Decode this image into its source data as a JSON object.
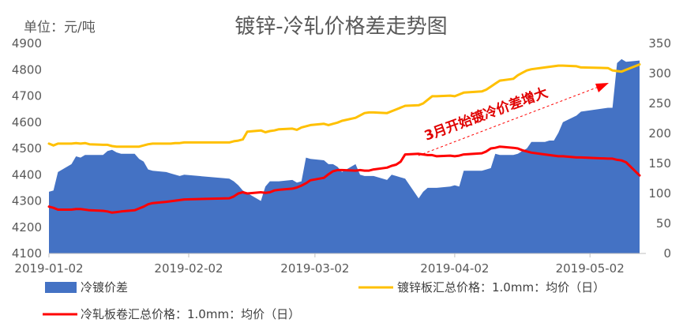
{
  "chart_data": {
    "type": "area",
    "title": "镀锌-冷轧价格差走势图",
    "unit_label": "单位：元/吨",
    "x_tick_labels": [
      "2019-01-02",
      "2019-02-02",
      "2019-03-02",
      "2019-04-02",
      "2019-05-02"
    ],
    "y_left": {
      "min": 4100,
      "max": 4900,
      "ticks": [
        "4100",
        "4200",
        "4300",
        "4400",
        "4500",
        "4600",
        "4700",
        "4800",
        "4900"
      ]
    },
    "y_right": {
      "min": 0,
      "max": 350,
      "ticks": [
        "0",
        "50",
        "100",
        "150",
        "200",
        "250",
        "300",
        "350"
      ]
    },
    "grid": false,
    "legend_placement": "bottom",
    "annotation": "3月开始镀冷价差增大",
    "series": [
      {
        "name": "冷镀价差",
        "kind": "area",
        "axis": "left",
        "color": "#4472c4",
        "x": [
          "2019-01-02",
          "2019-01-03",
          "2019-01-04",
          "2019-01-07",
          "2019-01-08",
          "2019-01-09",
          "2019-01-10",
          "2019-01-11",
          "2019-01-14",
          "2019-01-15",
          "2019-01-16",
          "2019-01-17",
          "2019-01-18",
          "2019-01-21",
          "2019-01-22",
          "2019-01-23",
          "2019-01-24",
          "2019-01-25",
          "2019-01-28",
          "2019-01-29",
          "2019-01-30",
          "2019-01-31",
          "2019-02-01",
          "2019-02-11",
          "2019-02-12",
          "2019-02-13",
          "2019-02-14",
          "2019-02-15",
          "2019-02-18",
          "2019-02-19",
          "2019-02-20",
          "2019-02-21",
          "2019-02-22",
          "2019-02-25",
          "2019-02-26",
          "2019-02-27",
          "2019-02-28",
          "2019-03-01",
          "2019-03-04",
          "2019-03-05",
          "2019-03-06",
          "2019-03-07",
          "2019-03-08",
          "2019-03-11",
          "2019-03-12",
          "2019-03-13",
          "2019-03-14",
          "2019-03-15",
          "2019-03-18",
          "2019-03-19",
          "2019-03-20",
          "2019-03-21",
          "2019-03-22",
          "2019-03-25",
          "2019-03-26",
          "2019-03-27",
          "2019-03-28",
          "2019-03-29",
          "2019-04-01",
          "2019-04-02",
          "2019-04-03",
          "2019-04-04",
          "2019-04-08",
          "2019-04-09",
          "2019-04-10",
          "2019-04-11",
          "2019-04-12",
          "2019-04-15",
          "2019-04-16",
          "2019-04-17",
          "2019-04-18",
          "2019-04-19",
          "2019-04-22",
          "2019-04-23",
          "2019-04-24",
          "2019-04-25",
          "2019-04-26",
          "2019-04-29",
          "2019-04-30",
          "2019-05-06",
          "2019-05-07",
          "2019-05-08",
          "2019-05-09",
          "2019-05-10",
          "2019-05-13"
        ],
        "y": [
          4335,
          4340,
          4410,
          4440,
          4470,
          4465,
          4475,
          4475,
          4475,
          4490,
          4495,
          4485,
          4480,
          4480,
          4460,
          4450,
          4420,
          4415,
          4410,
          4405,
          4400,
          4395,
          4400,
          4385,
          4375,
          4360,
          4340,
          4330,
          4300,
          4355,
          4375,
          4375,
          4375,
          4380,
          4370,
          4375,
          4465,
          4460,
          4455,
          4440,
          4440,
          4430,
          4410,
          4440,
          4400,
          4395,
          4395,
          4395,
          4380,
          4400,
          4395,
          4390,
          4385,
          4310,
          4335,
          4350,
          4350,
          4350,
          4355,
          4360,
          4355,
          4415,
          4415,
          4420,
          4425,
          4480,
          4475,
          4475,
          4480,
          4490,
          4500,
          4525,
          4525,
          4530,
          4530,
          4560,
          4600,
          4625,
          4640,
          4655,
          4655,
          4825,
          4840,
          4830,
          4835
        ]
      },
      {
        "name": "镀锌板汇总价格：1.0mm：均价（日）",
        "kind": "line",
        "axis": "right",
        "color": "#ffc000",
        "x": [
          "2019-01-02",
          "2019-01-03",
          "2019-01-04",
          "2019-01-07",
          "2019-01-08",
          "2019-01-09",
          "2019-01-10",
          "2019-01-11",
          "2019-01-14",
          "2019-01-15",
          "2019-01-16",
          "2019-01-17",
          "2019-01-18",
          "2019-01-21",
          "2019-01-22",
          "2019-01-23",
          "2019-01-24",
          "2019-01-25",
          "2019-01-28",
          "2019-01-29",
          "2019-01-30",
          "2019-01-31",
          "2019-02-01",
          "2019-02-11",
          "2019-02-12",
          "2019-02-13",
          "2019-02-14",
          "2019-02-15",
          "2019-02-18",
          "2019-02-19",
          "2019-02-20",
          "2019-02-21",
          "2019-02-22",
          "2019-02-25",
          "2019-02-26",
          "2019-02-27",
          "2019-02-28",
          "2019-03-01",
          "2019-03-04",
          "2019-03-05",
          "2019-03-06",
          "2019-03-07",
          "2019-03-08",
          "2019-03-11",
          "2019-03-12",
          "2019-03-13",
          "2019-03-14",
          "2019-03-15",
          "2019-03-18",
          "2019-03-19",
          "2019-03-20",
          "2019-03-21",
          "2019-03-22",
          "2019-03-25",
          "2019-03-26",
          "2019-03-27",
          "2019-03-28",
          "2019-03-29",
          "2019-04-01",
          "2019-04-02",
          "2019-04-03",
          "2019-04-04",
          "2019-04-08",
          "2019-04-09",
          "2019-04-10",
          "2019-04-11",
          "2019-04-12",
          "2019-04-15",
          "2019-04-16",
          "2019-04-17",
          "2019-04-18",
          "2019-04-19",
          "2019-04-22",
          "2019-04-23",
          "2019-04-24",
          "2019-04-25",
          "2019-04-26",
          "2019-04-29",
          "2019-04-30",
          "2019-05-06",
          "2019-05-07",
          "2019-05-08",
          "2019-05-09",
          "2019-05-10",
          "2019-05-13"
        ],
        "y": [
          183,
          180,
          183,
          183,
          184,
          183,
          184,
          182,
          181,
          181,
          179,
          178,
          178,
          178,
          178,
          180,
          182,
          183,
          183,
          183,
          184,
          184,
          185,
          185,
          187,
          188,
          190,
          203,
          205,
          202,
          204,
          205,
          207,
          208,
          206,
          210,
          212,
          214,
          216,
          214,
          216,
          218,
          221,
          226,
          230,
          234,
          235,
          235,
          234,
          237,
          240,
          243,
          246,
          247,
          250,
          256,
          262,
          262,
          263,
          262,
          265,
          268,
          270,
          273,
          278,
          283,
          288,
          291,
          297,
          301,
          305,
          307,
          310,
          311,
          312,
          313,
          313,
          312,
          310,
          309,
          305,
          304,
          303,
          306,
          315
        ]
      },
      {
        "name": "冷轧板卷汇总价格：1.0mm：均价（日）",
        "kind": "line",
        "axis": "right",
        "color": "#ff0000",
        "x": [
          "2019-01-02",
          "2019-01-03",
          "2019-01-04",
          "2019-01-07",
          "2019-01-08",
          "2019-01-09",
          "2019-01-10",
          "2019-01-11",
          "2019-01-14",
          "2019-01-15",
          "2019-01-16",
          "2019-01-17",
          "2019-01-18",
          "2019-01-21",
          "2019-01-22",
          "2019-01-23",
          "2019-01-24",
          "2019-01-25",
          "2019-01-28",
          "2019-01-29",
          "2019-01-30",
          "2019-01-31",
          "2019-02-01",
          "2019-02-11",
          "2019-02-12",
          "2019-02-13",
          "2019-02-14",
          "2019-02-15",
          "2019-02-18",
          "2019-02-19",
          "2019-02-20",
          "2019-02-21",
          "2019-02-22",
          "2019-02-25",
          "2019-02-26",
          "2019-02-27",
          "2019-02-28",
          "2019-03-01",
          "2019-03-04",
          "2019-03-05",
          "2019-03-06",
          "2019-03-07",
          "2019-03-08",
          "2019-03-11",
          "2019-03-12",
          "2019-03-13",
          "2019-03-14",
          "2019-03-15",
          "2019-03-18",
          "2019-03-19",
          "2019-03-20",
          "2019-03-21",
          "2019-03-22",
          "2019-03-25",
          "2019-03-26",
          "2019-03-27",
          "2019-03-28",
          "2019-03-29",
          "2019-04-01",
          "2019-04-02",
          "2019-04-03",
          "2019-04-04",
          "2019-04-08",
          "2019-04-09",
          "2019-04-10",
          "2019-04-11",
          "2019-04-12",
          "2019-04-15",
          "2019-04-16",
          "2019-04-17",
          "2019-04-18",
          "2019-04-19",
          "2019-04-22",
          "2019-04-23",
          "2019-04-24",
          "2019-04-25",
          "2019-04-26",
          "2019-04-29",
          "2019-04-30",
          "2019-05-06",
          "2019-05-07",
          "2019-05-08",
          "2019-05-09",
          "2019-05-10",
          "2019-05-13"
        ],
        "y": [
          78,
          76,
          73,
          73,
          74,
          74,
          73,
          72,
          71,
          70,
          68,
          69,
          70,
          72,
          75,
          78,
          82,
          84,
          86,
          87,
          88,
          89,
          90,
          92,
          95,
          100,
          102,
          100,
          102,
          101,
          102,
          105,
          106,
          108,
          110,
          113,
          117,
          122,
          126,
          132,
          137,
          139,
          139,
          138,
          139,
          138,
          138,
          140,
          143,
          146,
          148,
          153,
          165,
          166,
          165,
          164,
          164,
          162,
          163,
          162,
          163,
          165,
          167,
          170,
          175,
          176,
          178,
          176,
          175,
          172,
          170,
          168,
          165,
          164,
          163,
          162,
          162,
          160,
          160,
          158,
          158,
          156,
          155,
          152,
          130
        ]
      }
    ]
  }
}
